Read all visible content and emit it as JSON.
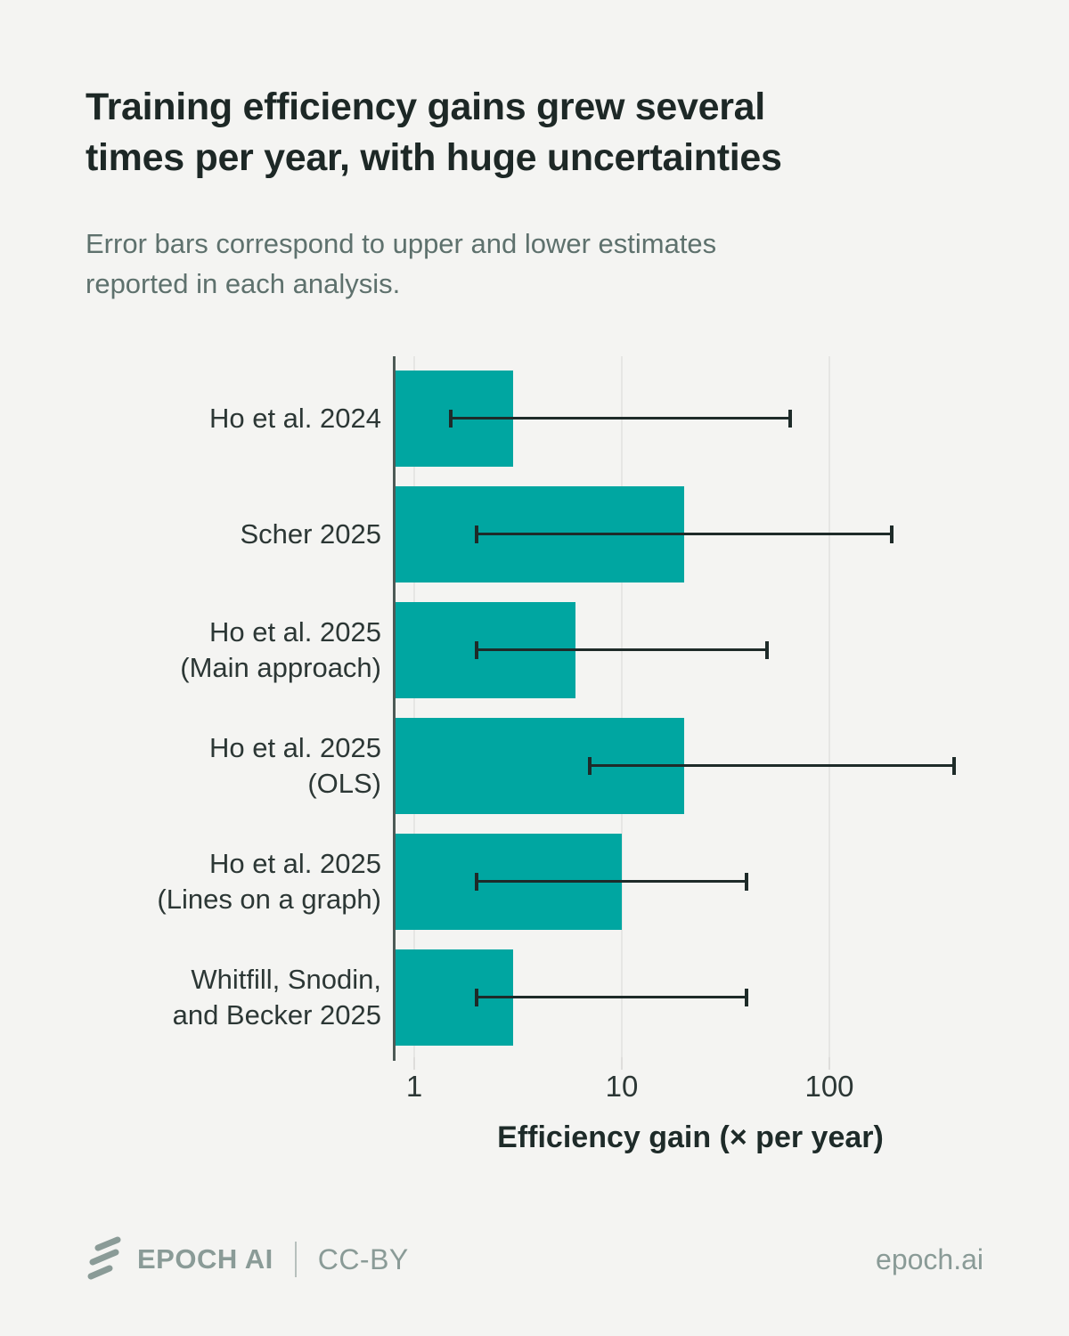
{
  "title": "Training efficiency gains grew several\ntimes per year, with huge uncertainties",
  "subtitle": "Error bars correspond to upper and lower estimates\nreported in each analysis.",
  "chart_data": {
    "type": "bar",
    "orientation": "horizontal",
    "x_scale": "log",
    "categories": [
      "Ho et al. 2024",
      "Scher 2025",
      "Ho et al. 2025\n(Main approach)",
      "Ho et al. 2025\n(OLS)",
      "Ho et al. 2025\n(Lines on a graph)",
      "Whitfill, Snodin,\nand Becker 2025"
    ],
    "values": [
      3,
      20,
      6,
      20,
      10,
      3
    ],
    "error_low": [
      1.5,
      2,
      2,
      7,
      2,
      2
    ],
    "error_high": [
      65,
      200,
      50,
      400,
      40,
      40
    ],
    "xlabel": "Efficiency gain (× per year)",
    "x_ticks": [
      1,
      10,
      100
    ],
    "x_tick_labels": [
      "1",
      "10",
      "100"
    ],
    "xlim": [
      0.8,
      800
    ],
    "grid": "vertical-decades",
    "legend": "none",
    "bar_color": "#00a6a1",
    "error_bar_color": "#1e2b29"
  },
  "colors": {
    "background": "#f4f4f2",
    "accent_teal": "#00a6a1",
    "title_text": "#1d2826",
    "subtitle_text": "#5e716d",
    "axis_text": "#2c3735",
    "axis_spine": "#4d5a56",
    "gridline": "#e6e6e4",
    "footer_gray": "#8a9b97"
  },
  "footer": {
    "logo_icon": "epoch-logo-icon",
    "brand": "EPOCH AI",
    "license": "CC-BY",
    "site": "epoch.ai"
  }
}
